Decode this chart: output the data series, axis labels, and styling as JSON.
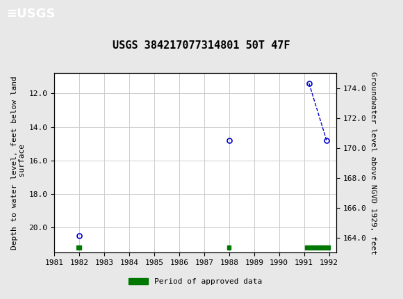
{
  "title": "USGS 384217077314801 50T 47F",
  "ylabel_left": "Depth to water level, feet below land\n surface",
  "ylabel_right": "Groundwater level above NGVD 1929, feet",
  "bg_color": "#e8e8e8",
  "plot_bg_color": "#ffffff",
  "header_color": "#006633",
  "data_points": [
    {
      "year": 1982.0,
      "depth": 20.5
    },
    {
      "year": 1988.0,
      "depth": 14.8
    },
    {
      "year": 1991.2,
      "depth": 11.4
    },
    {
      "year": 1991.9,
      "depth": 14.8
    }
  ],
  "isolated_indices": [
    0,
    1
  ],
  "connected_indices": [
    2,
    3
  ],
  "green_bar_periods": [
    {
      "start": 1981.87,
      "end": 1982.08
    },
    {
      "start": 1987.92,
      "end": 1988.05
    },
    {
      "start": 1991.05,
      "end": 1992.05
    }
  ],
  "xlim": [
    1981.0,
    1992.3
  ],
  "ylim_left": [
    21.5,
    10.8
  ],
  "ylim_right": [
    163.0,
    175.0
  ],
  "xtick_values": [
    1981,
    1982,
    1983,
    1984,
    1985,
    1986,
    1987,
    1988,
    1989,
    1990,
    1991,
    1992
  ],
  "xtick_labels": [
    "1981",
    "1982",
    "1983",
    "1984",
    "1985",
    "1986",
    "1987",
    "1988",
    "1989",
    "1990",
    "1991",
    "1992"
  ],
  "ytick_left": [
    12.0,
    14.0,
    16.0,
    18.0,
    20.0
  ],
  "ytick_right": [
    164.0,
    166.0,
    168.0,
    170.0,
    172.0,
    174.0
  ],
  "grid_color": "#cccccc",
  "point_color": "#0000cc",
  "point_markersize": 5,
  "line_color": "#0000cc",
  "green_color": "#007700",
  "green_bar_y": 21.2,
  "green_bar_height": 0.28,
  "legend_label": "Period of approved data",
  "title_fontsize": 11,
  "axis_label_fontsize": 8,
  "tick_fontsize": 8
}
